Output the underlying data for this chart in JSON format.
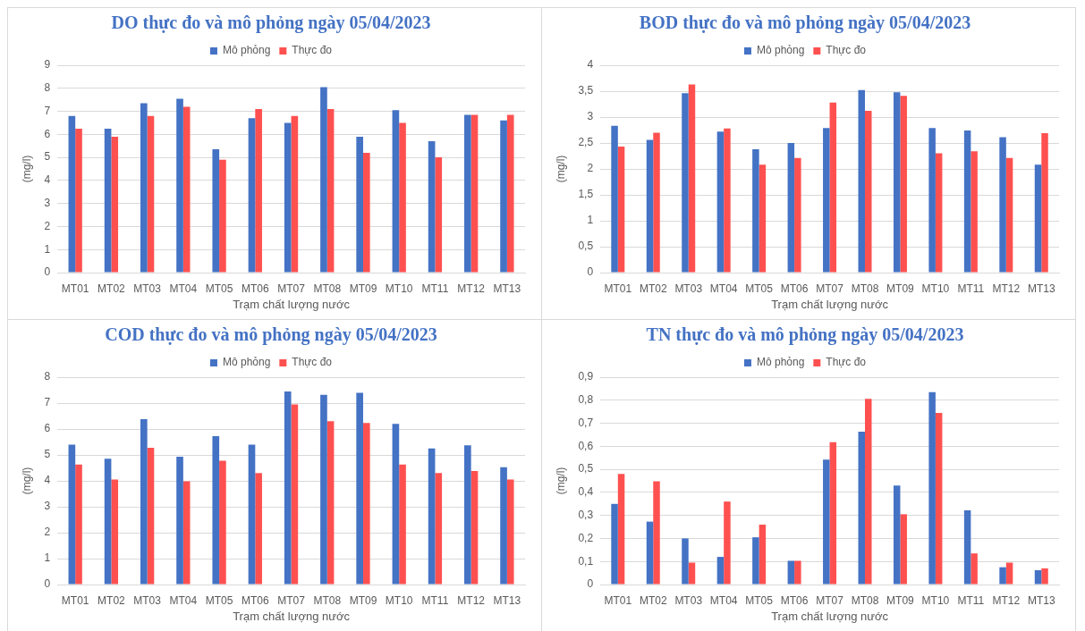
{
  "chart_data": [
    {
      "type": "bar",
      "title": "DO thực đo và mô phỏng ngày 05/04/2023",
      "xlabel": "Trạm chất lượng nước",
      "ylabel": "(mg/l)",
      "categories": [
        "MT01",
        "MT02",
        "MT03",
        "MT04",
        "MT05",
        "MT06",
        "MT07",
        "MT08",
        "MT09",
        "MT10",
        "MT11",
        "MT12",
        "MT13"
      ],
      "series": [
        {
          "name": "Mô phỏng",
          "color": "#4472c4",
          "values": [
            6.8,
            6.25,
            7.35,
            7.55,
            5.35,
            6.7,
            6.5,
            8.05,
            5.9,
            7.05,
            5.7,
            6.85,
            6.6
          ]
        },
        {
          "name": "Thực đo",
          "color": "#ff5050",
          "values": [
            6.25,
            5.9,
            6.8,
            7.2,
            4.9,
            7.1,
            6.8,
            7.1,
            5.2,
            6.5,
            5.0,
            6.85,
            6.85
          ]
        }
      ],
      "ylim": [
        0,
        9
      ],
      "yticks": [
        0,
        1,
        2,
        3,
        4,
        5,
        6,
        7,
        8,
        9
      ],
      "grid": "y",
      "legend": "top"
    },
    {
      "type": "bar",
      "title": "BOD thực đo và mô phỏng ngày 05/04/2023",
      "xlabel": "Trạm chất lượng nước",
      "ylabel": "(mg/l)",
      "categories": [
        "MT01",
        "MT02",
        "MT03",
        "MT04",
        "MT05",
        "MT06",
        "MT07",
        "MT08",
        "MT09",
        "MT10",
        "MT11",
        "MT12",
        "MT13"
      ],
      "series": [
        {
          "name": "Mô phỏng",
          "color": "#4472c4",
          "values": [
            2.83,
            2.56,
            3.46,
            2.72,
            2.38,
            2.5,
            2.79,
            3.52,
            3.48,
            2.79,
            2.74,
            2.61,
            2.08
          ]
        },
        {
          "name": "Thực đo",
          "color": "#ff5050",
          "values": [
            2.43,
            2.7,
            3.63,
            2.78,
            2.08,
            2.21,
            3.28,
            3.12,
            3.41,
            2.3,
            2.34,
            2.21,
            2.69
          ]
        }
      ],
      "ylim": [
        0,
        4
      ],
      "yticks": [
        0,
        {
          "value": 0.5,
          "label": "0,5"
        },
        1,
        {
          "value": 1.5,
          "label": "1,5"
        },
        2,
        {
          "value": 2.5,
          "label": "2,5"
        },
        3,
        {
          "value": 3.5,
          "label": "3,5"
        },
        4
      ],
      "grid": "y",
      "legend": "top"
    },
    {
      "type": "bar",
      "title": "COD thực đo và mô phỏng ngày 05/04/2023",
      "xlabel": "Trạm chất lượng nước",
      "ylabel": "(mg/l)",
      "categories": [
        "MT01",
        "MT02",
        "MT03",
        "MT04",
        "MT05",
        "MT06",
        "MT07",
        "MT08",
        "MT09",
        "MT10",
        "MT11",
        "MT12",
        "MT13"
      ],
      "series": [
        {
          "name": "Mô phỏng",
          "color": "#4472c4",
          "values": [
            5.4,
            4.85,
            6.38,
            4.93,
            5.72,
            5.4,
            7.45,
            7.32,
            7.4,
            6.2,
            5.25,
            5.37,
            4.53
          ]
        },
        {
          "name": "Thực đo",
          "color": "#ff5050",
          "values": [
            4.63,
            4.05,
            5.28,
            3.98,
            4.78,
            4.3,
            6.95,
            6.3,
            6.23,
            4.63,
            4.3,
            4.38,
            4.05
          ]
        }
      ],
      "ylim": [
        0,
        8
      ],
      "yticks": [
        0,
        1,
        2,
        3,
        4,
        5,
        6,
        7,
        8
      ],
      "grid": "y",
      "legend": "top"
    },
    {
      "type": "bar",
      "title": "TN thực đo và mô phỏng ngày 05/04/2023",
      "xlabel": "Trạm chất lượng nước",
      "ylabel": "(mg/l)",
      "categories": [
        "MT01",
        "MT02",
        "MT03",
        "MT04",
        "MT05",
        "MT06",
        "MT07",
        "MT08",
        "MT09",
        "MT10",
        "MT11",
        "MT12",
        "MT13"
      ],
      "series": [
        {
          "name": "Mô phỏng",
          "color": "#4472c4",
          "values": [
            0.35,
            0.273,
            0.2,
            0.12,
            0.205,
            0.103,
            0.542,
            0.663,
            0.43,
            0.835,
            0.322,
            0.075,
            0.062
          ]
        },
        {
          "name": "Thực đo",
          "color": "#ff5050",
          "values": [
            0.48,
            0.448,
            0.095,
            0.36,
            0.26,
            0.103,
            0.618,
            0.806,
            0.305,
            0.745,
            0.135,
            0.095,
            0.07
          ]
        }
      ],
      "ylim": [
        0,
        0.9
      ],
      "yticks": [
        0,
        {
          "value": 0.1,
          "label": "0,1"
        },
        {
          "value": 0.2,
          "label": "0,2"
        },
        {
          "value": 0.3,
          "label": "0,3"
        },
        {
          "value": 0.4,
          "label": "0,4"
        },
        {
          "value": 0.5,
          "label": "0,5"
        },
        {
          "value": 0.6,
          "label": "0,6"
        },
        {
          "value": 0.7,
          "label": "0,7"
        },
        {
          "value": 0.8,
          "label": "0,8"
        },
        {
          "value": 0.9,
          "label": "0,9"
        }
      ],
      "grid": "y",
      "legend": "top"
    }
  ]
}
